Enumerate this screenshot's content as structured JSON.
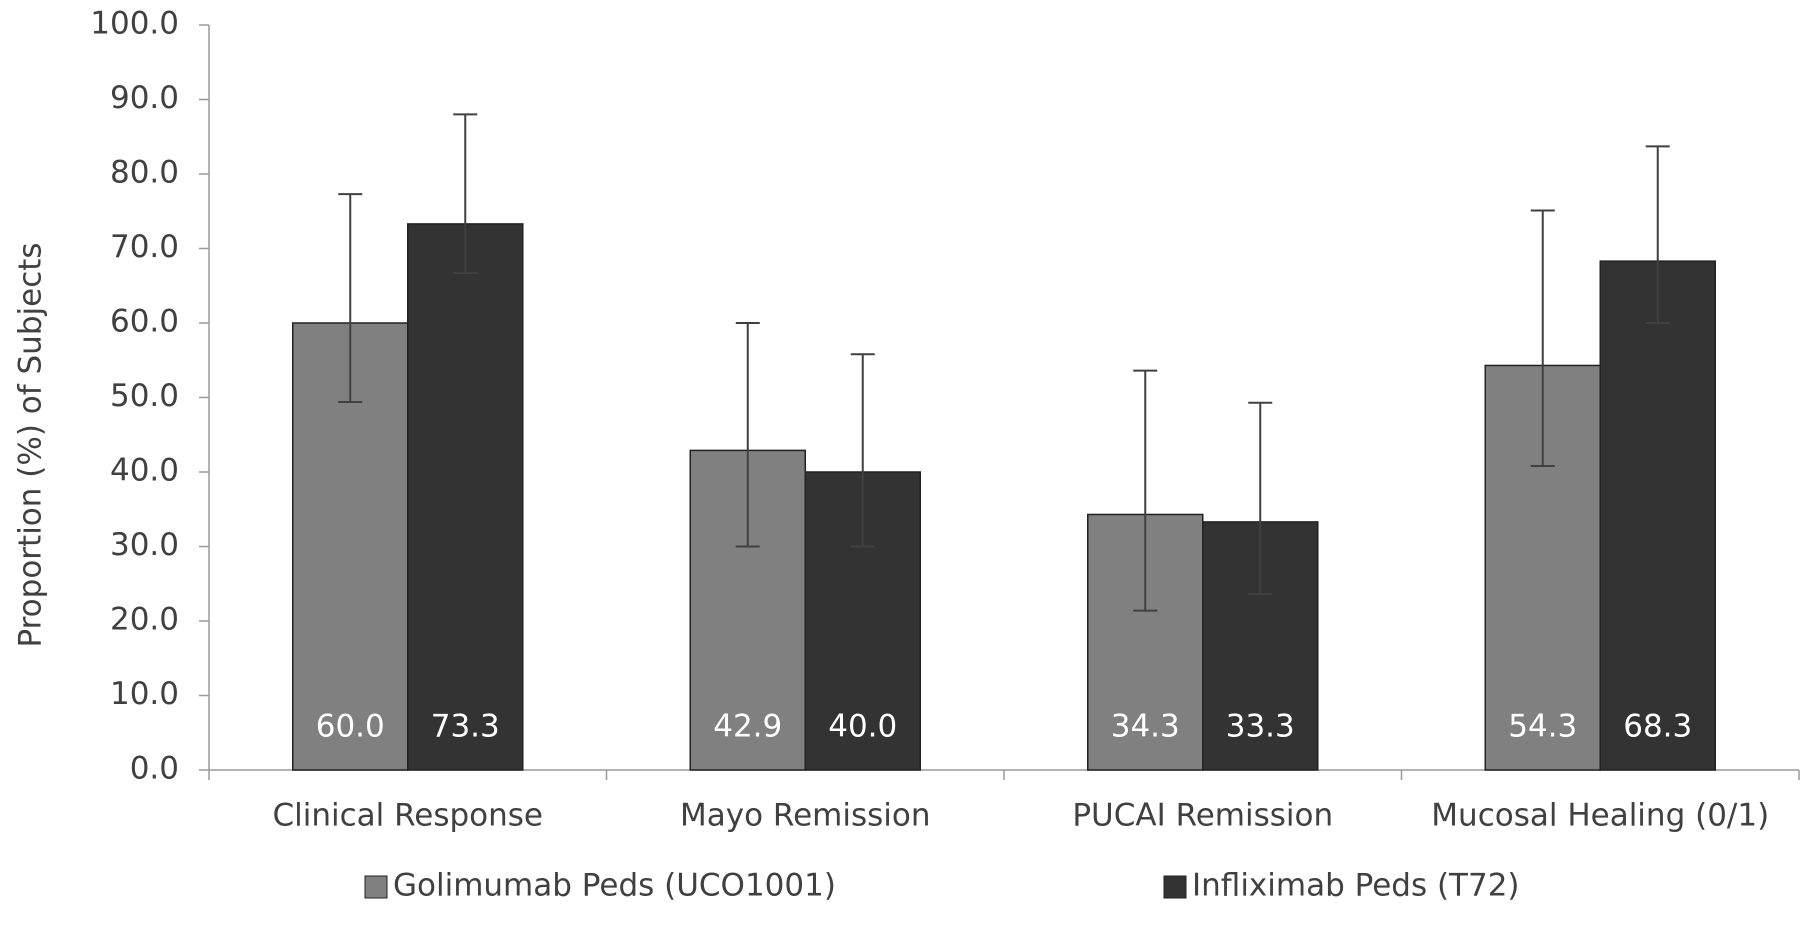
{
  "chart_data": {
    "type": "bar",
    "y_label": "Proportion (%) of Subjects",
    "categories": [
      "Clinical Response",
      "Mayo Remission",
      "PUCAI Remission",
      "Mucosal Healing (0/1)"
    ],
    "series": [
      {
        "name": "Golimumab Peds (UCO1001)",
        "color": "#808080",
        "values": [
          60.0,
          42.9,
          34.3,
          54.3
        ],
        "value_labels": [
          "60.0",
          "42.9",
          "34.3",
          "54.3"
        ],
        "error_low": [
          49.4,
          30.0,
          21.4,
          40.8
        ],
        "error_high": [
          77.3,
          60.0,
          53.6,
          75.1
        ]
      },
      {
        "name": "Infliximab Peds (T72)",
        "color": "#333333",
        "values": [
          73.3,
          40.0,
          33.3,
          68.3
        ],
        "value_labels": [
          "73.3",
          "40.0",
          "33.3",
          "68.3"
        ],
        "error_low": [
          66.7,
          30.0,
          23.6,
          60.0
        ],
        "error_high": [
          88.0,
          55.8,
          49.3,
          83.7
        ]
      }
    ],
    "ylim": [
      0,
      100
    ],
    "yticks": [
      {
        "value": 0,
        "label": "0.0"
      },
      {
        "value": 10,
        "label": "10.0"
      },
      {
        "value": 20,
        "label": "20.0"
      },
      {
        "value": 30,
        "label": "30.0"
      },
      {
        "value": 40,
        "label": "40.0"
      },
      {
        "value": 50,
        "label": "50.0"
      },
      {
        "value": 60,
        "label": "60.0"
      },
      {
        "value": 70,
        "label": "70.0"
      },
      {
        "value": 80,
        "label": "80.0"
      },
      {
        "value": 90,
        "label": "90.0"
      },
      {
        "value": 100,
        "label": "100.0"
      }
    ],
    "grid": false,
    "legend": "bottom"
  }
}
